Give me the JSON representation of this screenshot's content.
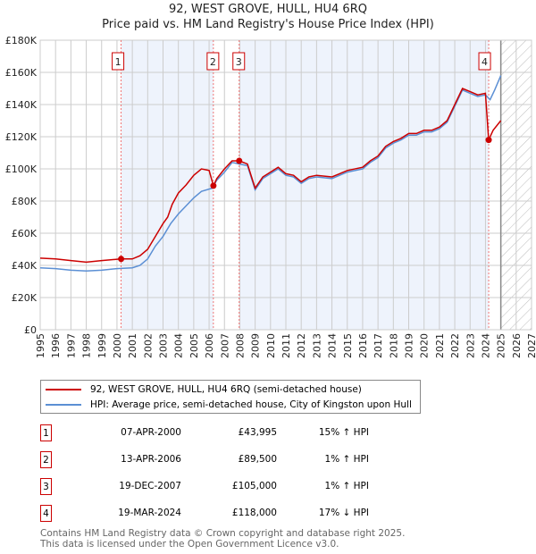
{
  "header": {
    "title": "92, WEST GROVE, HULL, HU4 6RQ",
    "subtitle": "Price paid vs. HM Land Registry's House Price Index (HPI)"
  },
  "chart_data": {
    "type": "line",
    "title": "92, WEST GROVE, HULL, HU4 6RQ",
    "subtitle": "Price paid vs. HM Land Registry's House Price Index (HPI)",
    "xlim": [
      1995,
      2027
    ],
    "ylim": [
      0,
      180000
    ],
    "x_ticks": [
      "1995",
      "1996",
      "1997",
      "1998",
      "1999",
      "2000",
      "2001",
      "2002",
      "2003",
      "2004",
      "2005",
      "2006",
      "2007",
      "2008",
      "2009",
      "2010",
      "2011",
      "2012",
      "2013",
      "2014",
      "2015",
      "2016",
      "2017",
      "2018",
      "2019",
      "2020",
      "2021",
      "2022",
      "2023",
      "2024",
      "2025",
      "2026",
      "2027"
    ],
    "y_ticks": [
      {
        "v": 0,
        "label": "£0"
      },
      {
        "v": 20000,
        "label": "£20K"
      },
      {
        "v": 40000,
        "label": "£40K"
      },
      {
        "v": 60000,
        "label": "£60K"
      },
      {
        "v": 80000,
        "label": "£80K"
      },
      {
        "v": 100000,
        "label": "£100K"
      },
      {
        "v": 120000,
        "label": "£120K"
      },
      {
        "v": 140000,
        "label": "£140K"
      },
      {
        "v": 160000,
        "label": "£160K"
      },
      {
        "v": 180000,
        "label": "£180K"
      }
    ],
    "grid": true,
    "forecast_start": 2025.0,
    "series": [
      {
        "name": "92, WEST GROVE, HULL, HU4 6RQ (semi-detached house)",
        "color": "#cc0000",
        "x": [
          1995,
          1996,
          1997,
          1998,
          1999,
          2000.27,
          2001,
          2001.5,
          2002,
          2002.5,
          2003,
          2003.3,
          2003.6,
          2004,
          2004.5,
          2005,
          2005.5,
          2006.0,
          2006.28,
          2006.5,
          2007,
          2007.5,
          2007.96,
          2008.5,
          2009,
          2009.5,
          2010,
          2010.5,
          2011,
          2011.5,
          2012,
          2012.5,
          2013,
          2014,
          2014.5,
          2015,
          2016,
          2016.5,
          2017,
          2017.5,
          2018,
          2018.5,
          2019,
          2019.5,
          2020,
          2020.5,
          2021,
          2021.5,
          2022,
          2022.5,
          2023,
          2023.5,
          2024.0,
          2024.21,
          2024.5,
          2025
        ],
        "y": [
          44500,
          44000,
          43000,
          42000,
          43000,
          44000,
          44000,
          46000,
          50000,
          58000,
          66000,
          70000,
          78000,
          85000,
          90000,
          96000,
          100000,
          99000,
          89500,
          94000,
          100000,
          105000,
          105000,
          103000,
          88000,
          95000,
          98000,
          101000,
          97000,
          96000,
          92000,
          95000,
          96000,
          95000,
          97000,
          99000,
          101000,
          105000,
          108000,
          114000,
          117000,
          119000,
          122000,
          122000,
          124000,
          124000,
          126000,
          130000,
          140000,
          150000,
          148000,
          146000,
          147000,
          118000,
          124000,
          130000
        ]
      },
      {
        "name": "HPI: Average price, semi-detached house, City of Kingston upon Hull",
        "color": "#5b8fd4",
        "x": [
          1995,
          1996,
          1997,
          1998,
          1999,
          2000,
          2001,
          2001.5,
          2002,
          2002.5,
          2003,
          2003.5,
          2004,
          2004.5,
          2005,
          2005.5,
          2006.2,
          2006.5,
          2007,
          2007.5,
          2008,
          2008.5,
          2009,
          2009.5,
          2010,
          2010.5,
          2011,
          2011.5,
          2012,
          2012.5,
          2013,
          2014,
          2014.5,
          2015,
          2016,
          2016.5,
          2017,
          2017.5,
          2018,
          2018.5,
          2019,
          2019.5,
          2020,
          2020.5,
          2021,
          2021.5,
          2022,
          2022.5,
          2023,
          2023.5,
          2024.0,
          2024.3,
          2024.6,
          2025
        ],
        "y": [
          38500,
          38000,
          37000,
          36500,
          37000,
          38000,
          38500,
          40000,
          44000,
          52000,
          58000,
          66000,
          72000,
          77000,
          82000,
          86000,
          88000,
          93000,
          98000,
          104000,
          103000,
          102000,
          87000,
          94000,
          97000,
          100000,
          96000,
          95000,
          91000,
          94000,
          95000,
          94000,
          96000,
          98000,
          100000,
          104000,
          107000,
          113000,
          116000,
          118000,
          121000,
          121000,
          123000,
          123000,
          125000,
          129000,
          139000,
          149000,
          147000,
          145000,
          146000,
          143000,
          149000,
          158000
        ]
      }
    ],
    "sales": [
      {
        "n": "1",
        "x": 2000.27,
        "y": 43995
      },
      {
        "n": "2",
        "x": 2006.28,
        "y": 89500
      },
      {
        "n": "3",
        "x": 2007.96,
        "y": 105000
      },
      {
        "n": "4",
        "x": 2024.21,
        "y": 118000
      }
    ]
  },
  "legend": {
    "price_label": "92, WEST GROVE, HULL, HU4 6RQ (semi-detached house)",
    "hpi_label": "HPI: Average price, semi-detached house, City of Kingston upon Hull"
  },
  "transactions": [
    {
      "n": "1",
      "date": "07-APR-2000",
      "price": "£43,995",
      "hpi": "15% ↑ HPI"
    },
    {
      "n": "2",
      "date": "13-APR-2006",
      "price": "£89,500",
      "hpi": "1% ↑ HPI"
    },
    {
      "n": "3",
      "date": "19-DEC-2007",
      "price": "£105,000",
      "hpi": "1% ↑ HPI"
    },
    {
      "n": "4",
      "date": "19-MAR-2024",
      "price": "£118,000",
      "hpi": "17% ↓ HPI"
    }
  ],
  "footer": {
    "line1": "Contains HM Land Registry data © Crown copyright and database right 2025.",
    "line2": "This data is licensed under the Open Government Licence v3.0."
  }
}
